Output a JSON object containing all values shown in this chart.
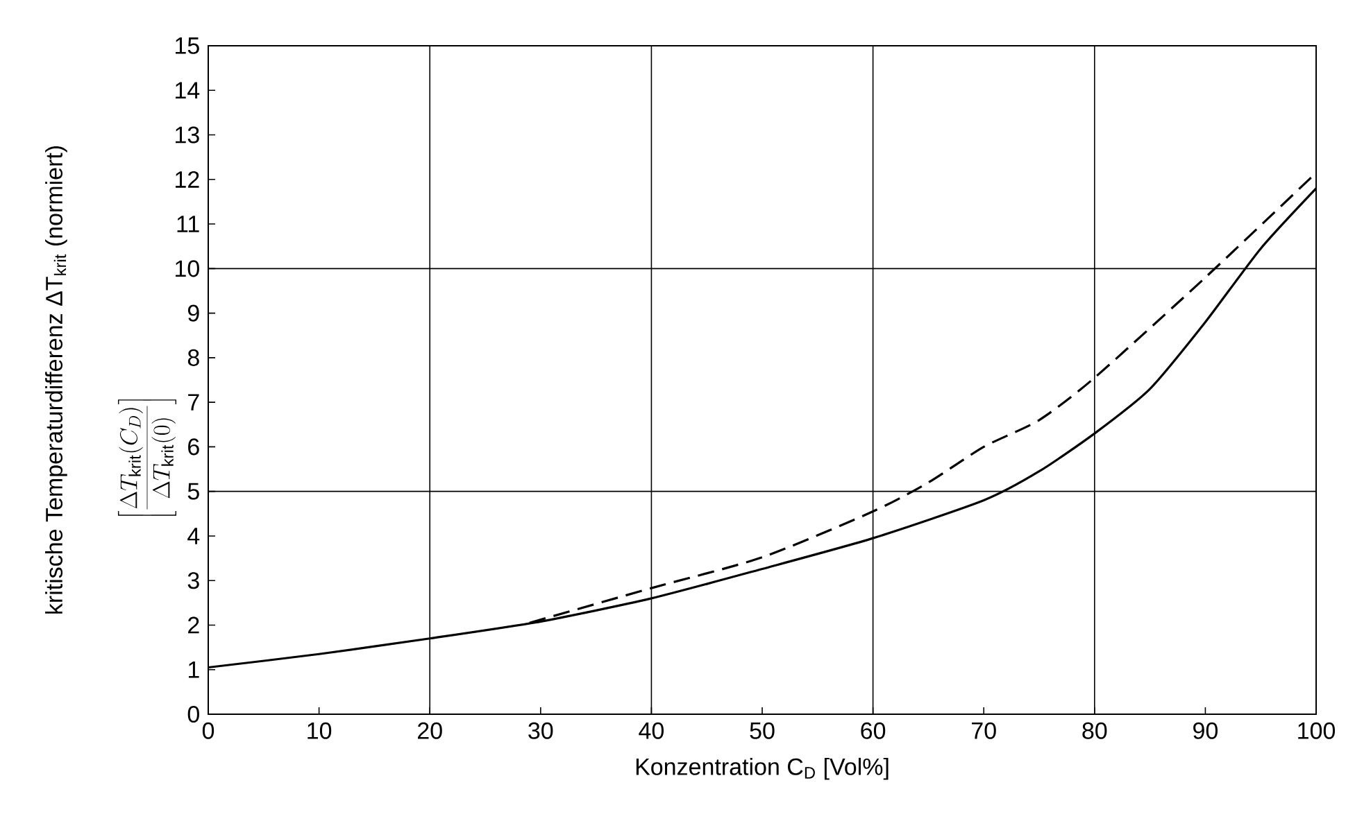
{
  "chart_data": {
    "type": "line",
    "xlabel": "Konzentration C$_{D}$ [Vol%]",
    "ylabel": "kritische Temperaturdifferenz ΔT$_{krit}$ (normiert)",
    "annotations": [
      "\\left[\\frac{\\Delta T_{\\mathrm{krit}}(C_{D})}{\\Delta T_{\\mathrm{krit}}(0)}\\right]"
    ],
    "xlim": [
      0,
      100
    ],
    "ylim": [
      0,
      15
    ],
    "xticks": [
      0,
      10,
      20,
      30,
      40,
      50,
      60,
      70,
      80,
      90,
      100
    ],
    "yticks": [
      0,
      1,
      2,
      3,
      4,
      5,
      6,
      7,
      8,
      9,
      10,
      11,
      12,
      13,
      14,
      15
    ],
    "grid": true,
    "series": [
      {
        "color": "#000000",
        "line_style": "solid",
        "x": [
          0,
          10,
          20,
          30,
          40,
          50,
          60,
          70,
          75,
          80,
          85,
          90,
          95,
          100
        ],
        "values": [
          1.05,
          1.35,
          1.7,
          2.08,
          2.6,
          3.26,
          3.95,
          4.8,
          5.45,
          6.3,
          7.3,
          8.8,
          10.45,
          11.8
        ]
      },
      {
        "color": "#000000",
        "line_style": "dashed",
        "x": [
          29,
          40,
          50,
          60,
          65,
          70,
          75,
          80,
          90,
          100
        ],
        "values": [
          2.05,
          2.83,
          3.52,
          4.55,
          5.2,
          6.0,
          6.6,
          7.55,
          9.8,
          12.15
        ]
      }
    ]
  }
}
